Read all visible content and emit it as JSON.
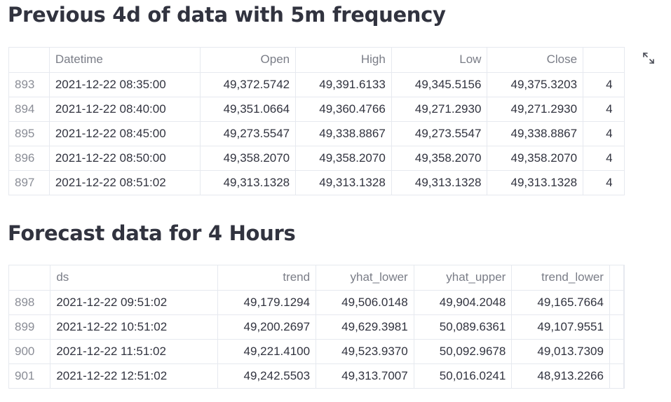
{
  "section1": {
    "title": "Previous 4d of data with 5m frequency",
    "columns": [
      "",
      "Datetime",
      "Open",
      "High",
      "Low",
      "Close",
      ""
    ],
    "rows": [
      {
        "index": "893",
        "datetime": "2021-12-22 08:35:00",
        "open": "49,372.5742",
        "high": "49,391.6133",
        "low": "49,345.5156",
        "close": "49,375.3203",
        "extra": "4"
      },
      {
        "index": "894",
        "datetime": "2021-12-22 08:40:00",
        "open": "49,351.0664",
        "high": "49,360.4766",
        "low": "49,271.2930",
        "close": "49,271.2930",
        "extra": "4"
      },
      {
        "index": "895",
        "datetime": "2021-12-22 08:45:00",
        "open": "49,273.5547",
        "high": "49,338.8867",
        "low": "49,273.5547",
        "close": "49,338.8867",
        "extra": "4"
      },
      {
        "index": "896",
        "datetime": "2021-12-22 08:50:00",
        "open": "49,358.2070",
        "high": "49,358.2070",
        "low": "49,358.2070",
        "close": "49,358.2070",
        "extra": "4"
      },
      {
        "index": "897",
        "datetime": "2021-12-22 08:51:02",
        "open": "49,313.1328",
        "high": "49,313.1328",
        "low": "49,313.1328",
        "close": "49,313.1328",
        "extra": "4"
      }
    ]
  },
  "section2": {
    "title": "Forecast data for 4 Hours",
    "columns": [
      "",
      "ds",
      "trend",
      "yhat_lower",
      "yhat_upper",
      "trend_lower",
      ""
    ],
    "rows": [
      {
        "index": "898",
        "ds": "2021-12-22 09:51:02",
        "trend": "49,179.1294",
        "yhat_lower": "49,506.0148",
        "yhat_upper": "49,904.2048",
        "trend_lower": "49,165.7664"
      },
      {
        "index": "899",
        "ds": "2021-12-22 10:51:02",
        "trend": "49,200.2697",
        "yhat_lower": "49,629.3981",
        "yhat_upper": "50,089.6361",
        "trend_lower": "49,107.9551"
      },
      {
        "index": "900",
        "ds": "2021-12-22 11:51:02",
        "trend": "49,221.4100",
        "yhat_lower": "49,523.9370",
        "yhat_upper": "50,092.9678",
        "trend_lower": "49,013.7309"
      },
      {
        "index": "901",
        "ds": "2021-12-22 12:51:02",
        "trend": "49,242.5503",
        "yhat_lower": "49,313.7007",
        "yhat_upper": "50,016.0241",
        "trend_lower": "48,913.2266"
      }
    ]
  },
  "icons": {
    "expand": "fullscreen-expand-icon"
  }
}
